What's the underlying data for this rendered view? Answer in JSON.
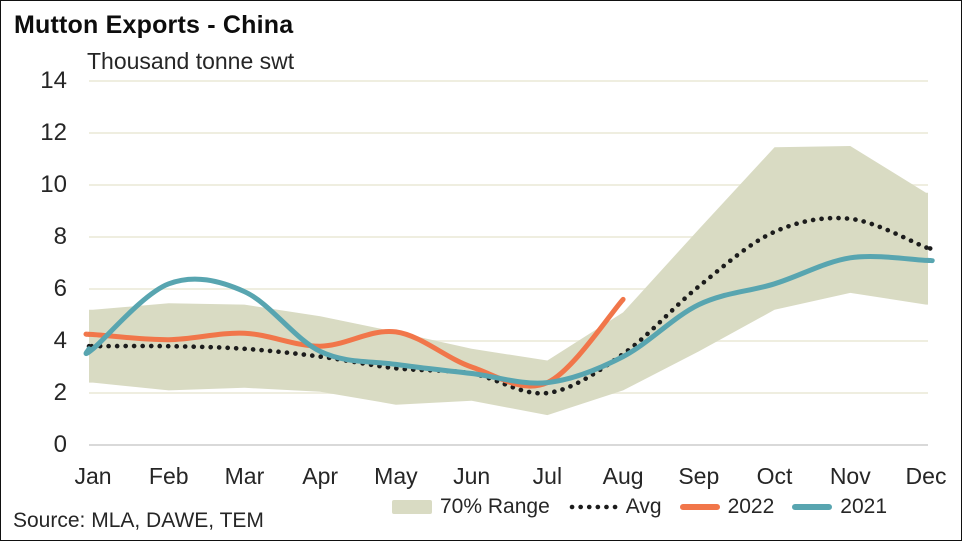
{
  "header": {
    "title": "Mutton Exports - China",
    "subtitle": "Thousand tonne swt"
  },
  "source": "Source: MLA, DAWE, TEM",
  "colors": {
    "band": "#d9dbc3",
    "avg": "#1c1c1c",
    "y2022": "#f1764a",
    "y2021": "#58a5b0",
    "grid": "#efeee0",
    "axis": "#d9d9d9",
    "text": "#262626"
  },
  "legend": [
    {
      "label": "70% Range",
      "icon": "band-swatch-icon"
    },
    {
      "label": "Avg",
      "icon": "dotted-line-icon"
    },
    {
      "label": "2022",
      "icon": "orange-line-icon"
    },
    {
      "label": "2021",
      "icon": "teal-line-icon"
    }
  ],
  "chart_data": {
    "type": "line",
    "title": "Mutton Exports - China",
    "ylabel": "Thousand tonne swt",
    "xlabel": "",
    "ylim": [
      0,
      14
    ],
    "yticks": [
      0,
      2,
      4,
      6,
      8,
      10,
      12,
      14
    ],
    "grid": true,
    "legend_position": "bottom",
    "categories": [
      "Jan",
      "Feb",
      "Mar",
      "Apr",
      "May",
      "Jun",
      "Jul",
      "Aug",
      "Sep",
      "Oct",
      "Nov",
      "Dec"
    ],
    "series": [
      {
        "name": "70% Range",
        "style": "band",
        "color": "#d9dbc3",
        "upper": [
          5.2,
          5.45,
          5.4,
          4.95,
          4.35,
          3.7,
          3.25,
          5.1,
          8.3,
          11.45,
          11.5,
          9.7
        ],
        "lower": [
          2.4,
          2.1,
          2.2,
          2.05,
          1.55,
          1.7,
          1.15,
          2.1,
          3.6,
          5.2,
          5.85,
          5.4
        ]
      },
      {
        "name": "Avg",
        "style": "dotted",
        "color": "#1c1c1c",
        "values": [
          3.8,
          3.8,
          3.7,
          3.4,
          2.95,
          2.75,
          2.0,
          3.5,
          6.1,
          8.2,
          8.7,
          7.6
        ]
      },
      {
        "name": "2022",
        "style": "solid",
        "color": "#f1764a",
        "values": [
          4.25,
          4.05,
          4.3,
          3.8,
          4.35,
          3.0,
          2.4,
          5.6,
          null,
          null,
          null,
          null
        ]
      },
      {
        "name": "2021",
        "style": "solid",
        "color": "#58a5b0",
        "values": [
          3.7,
          6.2,
          5.9,
          3.6,
          3.1,
          2.75,
          2.4,
          3.4,
          5.4,
          6.2,
          7.2,
          7.1
        ]
      }
    ]
  }
}
